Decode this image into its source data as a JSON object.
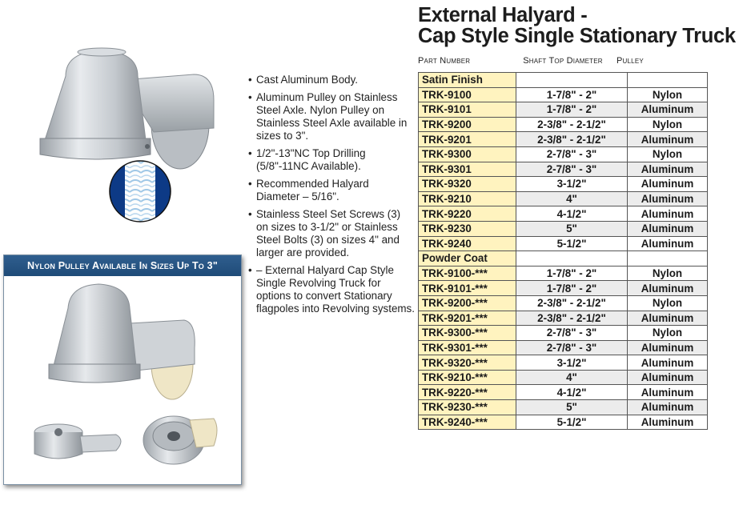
{
  "title": {
    "line1": "External Halyard -",
    "line2": "Cap Style Single Stationary Truck"
  },
  "columns": {
    "part": "Part Number",
    "shaft": "Shaft Top Diameter",
    "pulley": "Pulley"
  },
  "callout": {
    "title": "Nylon Pulley Available In Sizes Up To 3\""
  },
  "features": [
    "Cast Aluminum Body.",
    "Aluminum Pulley on Stainless Steel Axle. Nylon Pulley on Stainless Steel Axle available in sizes to 3\".",
    "1/2\"-13\"NC Top Drilling (5/8\"-11NC Available).",
    "Recommended Halyard Diameter – 5/16\".",
    "Stainless Steel Set Screws (3) on sizes to 3-1/2\" or Stainless Steel Bolts (3) on sizes 4\" and larger are provided.",
    "– External Halyard Cap Style Single Revolving Truck for options to convert Stationary flagpoles into Revolving systems."
  ],
  "groups": [
    {
      "name": "Satin Finish",
      "rows": [
        {
          "part": "TRK-9100",
          "shaft": "1-7/8\" - 2\"",
          "pulley": "Nylon"
        },
        {
          "part": "TRK-9101",
          "shaft": "1-7/8\" - 2\"",
          "pulley": "Aluminum"
        },
        {
          "part": "TRK-9200",
          "shaft": "2-3/8\" - 2-1/2\"",
          "pulley": "Nylon"
        },
        {
          "part": "TRK-9201",
          "shaft": "2-3/8\" - 2-1/2\"",
          "pulley": "Aluminum"
        },
        {
          "part": "TRK-9300",
          "shaft": "2-7/8\" - 3\"",
          "pulley": "Nylon"
        },
        {
          "part": "TRK-9301",
          "shaft": "2-7/8\" - 3\"",
          "pulley": "Aluminum"
        },
        {
          "part": "TRK-9320",
          "shaft": "3-1/2\"",
          "pulley": "Aluminum"
        },
        {
          "part": "TRK-9210",
          "shaft": "4\"",
          "pulley": "Aluminum"
        },
        {
          "part": "TRK-9220",
          "shaft": "4-1/2\"",
          "pulley": "Aluminum"
        },
        {
          "part": "TRK-9230",
          "shaft": "5\"",
          "pulley": "Aluminum"
        },
        {
          "part": "TRK-9240",
          "shaft": "5-1/2\"",
          "pulley": "Aluminum"
        }
      ]
    },
    {
      "name": "Powder Coat",
      "rows": [
        {
          "part": "TRK-9100-***",
          "shaft": "1-7/8\" - 2\"",
          "pulley": "Nylon"
        },
        {
          "part": "TRK-9101-***",
          "shaft": "1-7/8\" - 2\"",
          "pulley": "Aluminum"
        },
        {
          "part": "TRK-9200-***",
          "shaft": "2-3/8\" - 2-1/2\"",
          "pulley": "Nylon"
        },
        {
          "part": "TRK-9201-***",
          "shaft": "2-3/8\" - 2-1/2\"",
          "pulley": "Aluminum"
        },
        {
          "part": "TRK-9300-***",
          "shaft": "2-7/8\" - 3\"",
          "pulley": "Nylon"
        },
        {
          "part": "TRK-9301-***",
          "shaft": "2-7/8\" - 3\"",
          "pulley": "Aluminum"
        },
        {
          "part": "TRK-9320-***",
          "shaft": "3-1/2\"",
          "pulley": "Aluminum"
        },
        {
          "part": "TRK-9210-***",
          "shaft": "4\"",
          "pulley": "Aluminum"
        },
        {
          "part": "TRK-9220-***",
          "shaft": "4-1/2\"",
          "pulley": "Aluminum"
        },
        {
          "part": "TRK-9230-***",
          "shaft": "5\"",
          "pulley": "Aluminum"
        },
        {
          "part": "TRK-9240-***",
          "shaft": "5-1/2\"",
          "pulley": "Aluminum"
        }
      ]
    }
  ],
  "colors": {
    "part_cell": "#fff3bf",
    "alt_row": "#ececec",
    "callout_header": "#1f4b78"
  },
  "icons": {
    "product": "truck-photo",
    "rope": "halyard-rope-photo",
    "callout_images": "truck-photo"
  }
}
